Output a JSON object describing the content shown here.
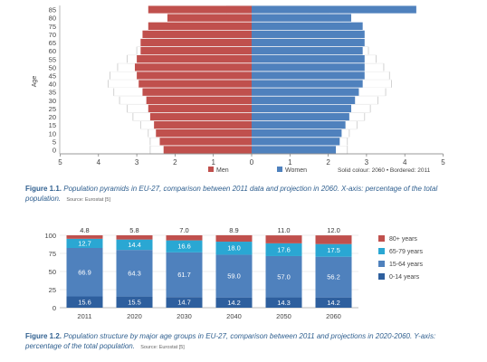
{
  "figure1": {
    "caption_label": "Figure 1.1.",
    "caption_text": "Population pyramids in EU-27, comparison between 2011 data and projection in 2060. X-axis: percentage of the total population.",
    "source": "Source: Eurostat [5]"
  },
  "figure2": {
    "caption_label": "Figure 1.2.",
    "caption_text": "Population structure by major age groups in EU-27, comparison between 2011 and projections in 2020-2060. Y-axis: percentage of the total population.",
    "source": "Source: Eurostat [5]"
  },
  "colors": {
    "men": "#c0504d",
    "women": "#4f81bd",
    "age80": "#c0504d",
    "age65": "#2aa7d3",
    "age15": "#4f81bd",
    "age0": "#2e5f9e"
  },
  "chart_data": [
    {
      "type": "bar",
      "subtype": "population-pyramid",
      "ylabel": "Age",
      "xlim": [
        -5,
        5
      ],
      "x_ticks": [
        "5",
        "4",
        "3",
        "2",
        "1",
        "0",
        "1",
        "2",
        "3",
        "4",
        "5"
      ],
      "age_groups": [
        "0",
        "5",
        "10",
        "15",
        "20",
        "25",
        "30",
        "35",
        "40",
        "45",
        "50",
        "55",
        "60",
        "65",
        "70",
        "75",
        "80",
        "85"
      ],
      "legend": {
        "men": "Men",
        "women": "Women",
        "note": "Solid colour: 2060 • Bordered: 2011"
      },
      "series": [
        {
          "name": "Men",
          "year": "2060",
          "style": "solid",
          "values": [
            2.3,
            2.4,
            2.5,
            2.55,
            2.65,
            2.7,
            2.75,
            2.85,
            2.95,
            3.0,
            3.05,
            3.0,
            2.9,
            2.9,
            2.85,
            2.7,
            2.2,
            2.7
          ]
        },
        {
          "name": "Men",
          "year": "2011",
          "style": "bordered",
          "values": [
            2.65,
            2.65,
            2.7,
            2.9,
            3.1,
            3.25,
            3.45,
            3.6,
            3.75,
            3.7,
            3.5,
            3.25,
            3.0,
            2.75,
            2.3,
            2.0,
            1.55,
            0.65
          ]
        },
        {
          "name": "Women",
          "year": "2060",
          "style": "solid",
          "values": [
            2.2,
            2.3,
            2.35,
            2.45,
            2.55,
            2.6,
            2.7,
            2.8,
            2.9,
            2.95,
            2.95,
            2.95,
            2.9,
            2.95,
            2.95,
            2.9,
            2.6,
            4.3
          ]
        },
        {
          "name": "Women",
          "year": "2011",
          "style": "bordered",
          "values": [
            2.5,
            2.5,
            2.55,
            2.75,
            2.95,
            3.1,
            3.3,
            3.5,
            3.65,
            3.6,
            3.45,
            3.25,
            3.05,
            2.85,
            2.55,
            2.35,
            2.0,
            1.5
          ]
        }
      ]
    },
    {
      "type": "bar",
      "subtype": "stacked-100",
      "categories": [
        "2011",
        "2020",
        "2030",
        "2040",
        "2050",
        "2060"
      ],
      "ylim": [
        0,
        100
      ],
      "y_ticks": [
        "0",
        "25",
        "50",
        "75",
        "100"
      ],
      "series": [
        {
          "name": "0-14 years",
          "color_key": "age0",
          "values": [
            15.6,
            15.5,
            14.7,
            14.2,
            14.3,
            14.2
          ]
        },
        {
          "name": "15-64 years",
          "color_key": "age15",
          "values": [
            66.9,
            64.3,
            61.7,
            59.0,
            57.0,
            56.2
          ]
        },
        {
          "name": "65-79 years",
          "color_key": "age65",
          "values": [
            12.7,
            14.4,
            16.6,
            18.0,
            17.6,
            17.5
          ]
        },
        {
          "name": "80+ years",
          "color_key": "age80",
          "values": [
            4.8,
            5.8,
            7.0,
            8.9,
            11.0,
            12.0
          ]
        }
      ],
      "legend_order": [
        "80+ years",
        "65-79 years",
        "15-64 years",
        "0-14 years"
      ]
    }
  ]
}
